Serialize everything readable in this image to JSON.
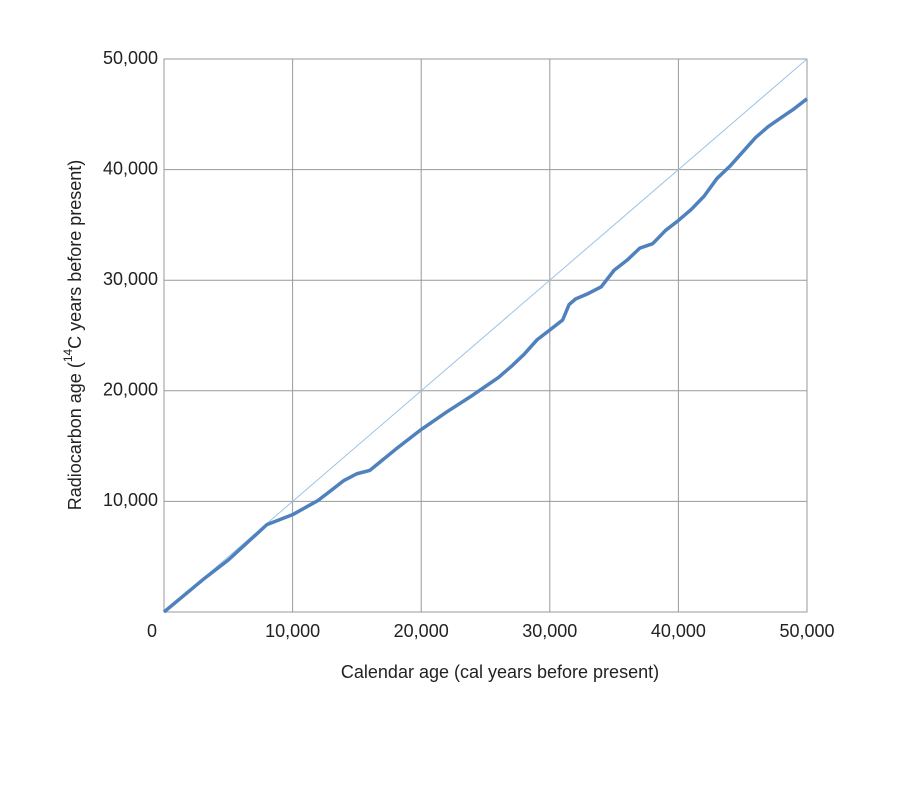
{
  "chart_data": {
    "type": "line",
    "xlabel": "Calendar age (cal years before present)",
    "ylabel": [
      "Radiocarbon age (",
      "14",
      "C years before present)"
    ],
    "xlim": [
      0,
      50000
    ],
    "ylim": [
      0,
      50000
    ],
    "xticks": [
      0,
      {
        "value": 10000,
        "label": "10,000"
      },
      {
        "value": 20000,
        "label": "20,000"
      },
      {
        "value": 30000,
        "label": "30,000"
      },
      {
        "value": 40000,
        "label": "40,000"
      },
      {
        "value": 50000,
        "label": "50,000"
      }
    ],
    "yticks": [
      {
        "value": 10000,
        "label": "10,000"
      },
      {
        "value": 20000,
        "label": "20,000"
      },
      {
        "value": 30000,
        "label": "30,000"
      },
      {
        "value": 40000,
        "label": "40,000"
      },
      {
        "value": 50000,
        "label": "50,000"
      }
    ],
    "grid": true,
    "series": [
      {
        "color": "#9dc3e6",
        "x": [
          0,
          50000
        ],
        "values": [
          0,
          50000
        ]
      },
      {
        "color": "#4f81bd",
        "x": [
          0,
          3000,
          5000,
          8000,
          10000,
          12000,
          13000,
          14000,
          15000,
          16000,
          18000,
          20000,
          22000,
          24000,
          25000,
          26000,
          27000,
          28000,
          29000,
          30000,
          31000,
          31500,
          32000,
          33000,
          34000,
          35000,
          36000,
          37000,
          38000,
          39000,
          40000,
          41000,
          42000,
          43000,
          44000,
          45000,
          46000,
          47000,
          48000,
          49000,
          50000
        ],
        "values": [
          0,
          2900,
          4700,
          7900,
          8800,
          10100,
          11000,
          11900,
          12500,
          12800,
          14700,
          16500,
          18100,
          19600,
          20400,
          21200,
          22200,
          23300,
          24600,
          25500,
          26400,
          27800,
          28300,
          28800,
          29400,
          30900,
          31800,
          32900,
          33300,
          34500,
          35400,
          36400,
          37600,
          39200,
          40300,
          41600,
          42900,
          43900,
          44700,
          45500,
          46400
        ]
      }
    ]
  }
}
